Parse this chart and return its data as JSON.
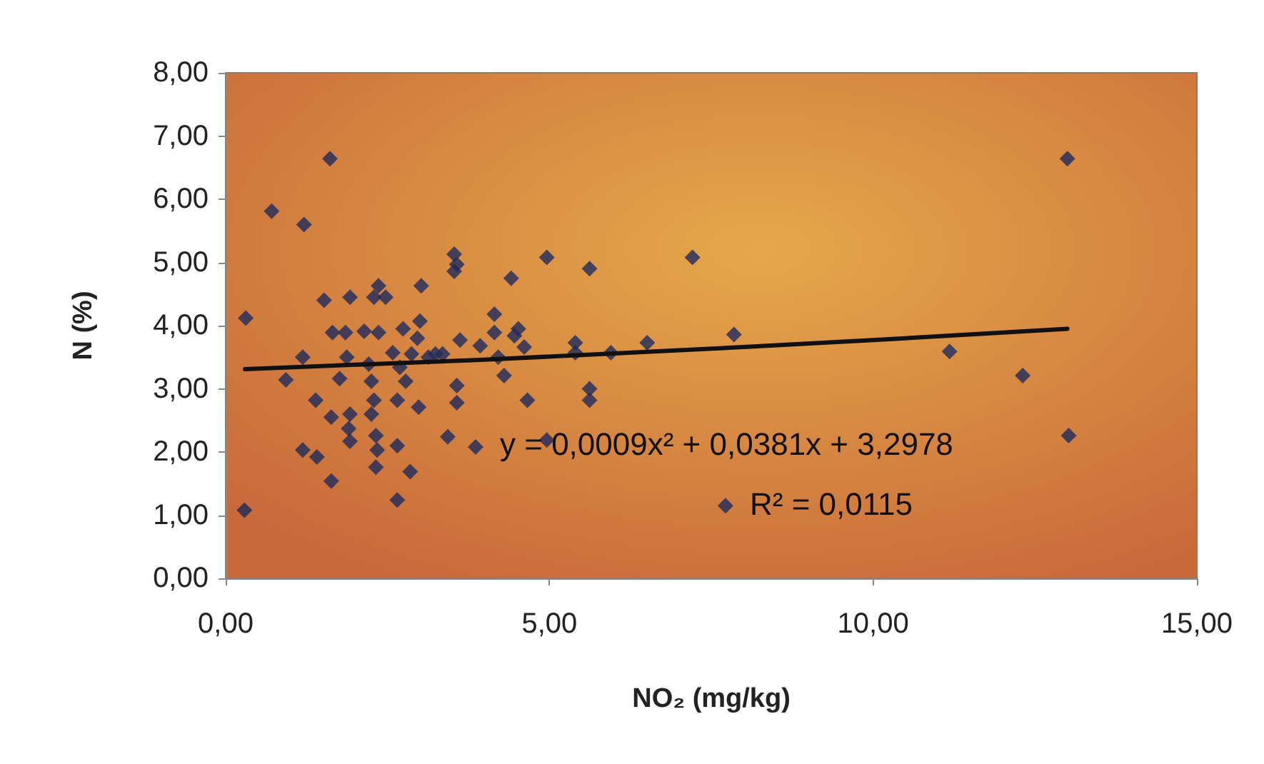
{
  "chart_data": {
    "type": "scatter",
    "xlabel": "NO₂ (mg/kg)",
    "ylabel": "N (%)",
    "marker": "diamond",
    "grid": false,
    "xlim": [
      0,
      15
    ],
    "ylim": [
      0,
      8
    ],
    "xticks": [
      {
        "value": 0,
        "label": "0,00"
      },
      {
        "value": 5,
        "label": "5,00"
      },
      {
        "value": 10,
        "label": "10,00"
      },
      {
        "value": 15,
        "label": "15,00"
      }
    ],
    "yticks": [
      {
        "value": 0,
        "label": "0,00"
      },
      {
        "value": 1,
        "label": "1,00"
      },
      {
        "value": 2,
        "label": "2,00"
      },
      {
        "value": 3,
        "label": "3,00"
      },
      {
        "value": 4,
        "label": "4,00"
      },
      {
        "value": 5,
        "label": "5,00"
      },
      {
        "value": 6,
        "label": "6,00"
      },
      {
        "value": 7,
        "label": "7,00"
      },
      {
        "value": 8,
        "label": "8,00"
      }
    ],
    "annotations": [
      "y = 0,0009x² + 0,0381x + 3,2978",
      "R² = 0,0115"
    ],
    "series": [
      {
        "color": "#1f2a5c",
        "x": [
          0.31,
          0.29,
          0.71,
          1.21,
          0.93,
          1.61,
          1.19,
          1.41,
          1.19,
          1.52,
          1.63,
          1.63,
          1.39,
          1.65,
          1.85,
          1.92,
          1.87,
          1.76,
          1.92,
          1.9,
          1.92,
          2.14,
          2.21,
          2.29,
          2.36,
          2.47,
          2.36,
          2.25,
          2.29,
          2.32,
          2.34,
          2.32,
          2.25,
          2.58,
          2.65,
          2.69,
          2.65,
          2.65,
          2.78,
          2.85,
          2.74,
          2.87,
          2.96,
          2.98,
          3.0,
          3.02,
          3.13,
          3.24,
          3.35,
          3.53,
          3.57,
          3.53,
          3.57,
          3.57,
          3.62,
          3.43,
          3.86,
          3.93,
          4.15,
          4.15,
          4.21,
          4.3,
          4.41,
          4.52,
          4.46,
          4.61,
          4.66,
          4.96,
          4.96,
          5.4,
          5.4,
          5.62,
          5.62,
          5.62,
          5.95,
          6.51,
          7.21,
          7.85,
          7.72,
          11.18,
          12.31,
          13.0,
          13.02
        ],
        "values": [
          4.12,
          1.08,
          5.81,
          5.6,
          3.14,
          6.64,
          2.03,
          1.92,
          3.5,
          4.4,
          2.55,
          1.54,
          2.82,
          3.89,
          3.89,
          4.45,
          3.5,
          3.16,
          2.6,
          2.37,
          2.17,
          3.91,
          3.39,
          4.45,
          4.63,
          4.45,
          3.89,
          2.6,
          2.82,
          2.26,
          2.03,
          1.76,
          3.12,
          3.57,
          2.82,
          3.34,
          2.1,
          1.24,
          3.12,
          1.69,
          3.95,
          3.55,
          3.8,
          2.71,
          4.07,
          4.63,
          3.5,
          3.55,
          3.55,
          5.13,
          4.97,
          4.86,
          2.78,
          3.05,
          3.77,
          2.24,
          2.08,
          3.68,
          4.18,
          3.89,
          3.5,
          3.21,
          4.75,
          3.95,
          3.84,
          3.66,
          2.82,
          5.08,
          2.19,
          3.73,
          3.57,
          4.9,
          3.0,
          2.82,
          3.57,
          3.73,
          5.08,
          3.86,
          1.15,
          3.59,
          3.21,
          6.64,
          2.26
        ]
      },
      {
        "type": "line",
        "color": "#111111",
        "marker": "none",
        "x": [
          0.3,
          2,
          4,
          6,
          8,
          10,
          12,
          13
        ],
        "values": [
          3.31,
          3.38,
          3.46,
          3.56,
          3.66,
          3.77,
          3.89,
          3.95
        ]
      }
    ]
  }
}
